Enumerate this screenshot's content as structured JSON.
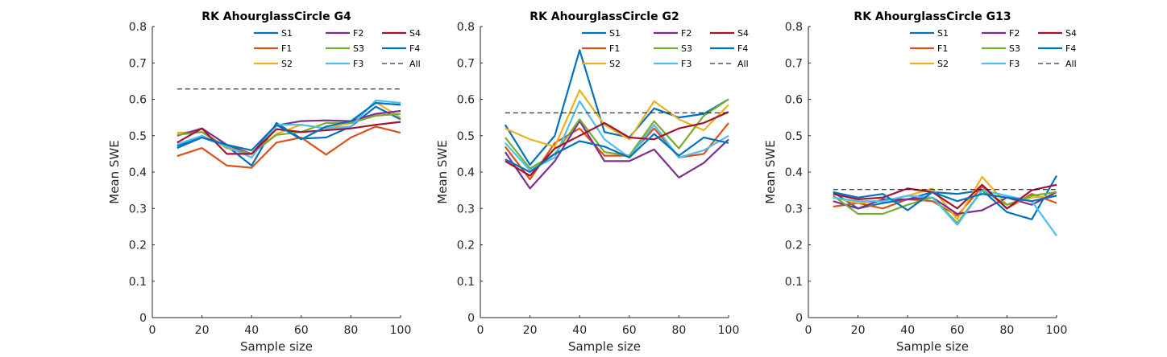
{
  "chart_data": [
    {
      "type": "line",
      "title": "RK AhourglassCircle G4",
      "xlabel": "Sample size",
      "ylabel": "Mean SWE",
      "xlim": [
        0,
        100
      ],
      "ylim": [
        0,
        0.8
      ],
      "xticks": [
        "0",
        "20",
        "40",
        "60",
        "80",
        "100"
      ],
      "yticks": [
        "0",
        "0.1",
        "0.2",
        "0.3",
        "0.4",
        "0.5",
        "0.6",
        "0.7",
        "0.8"
      ],
      "legend_position": "top-right",
      "grid": false,
      "x": [
        10,
        20,
        30,
        40,
        50,
        60,
        70,
        80,
        90,
        100
      ],
      "series": [
        {
          "name": "S1",
          "color": "#0072BD",
          "values": [
            0.472,
            0.495,
            0.472,
            0.418,
            0.535,
            0.492,
            0.495,
            0.525,
            0.58,
            0.545
          ]
        },
        {
          "name": "F1",
          "color": "#D95319",
          "values": [
            0.444,
            0.466,
            0.418,
            0.412,
            0.481,
            0.495,
            0.448,
            0.495,
            0.525,
            0.508
          ]
        },
        {
          "name": "S2",
          "color": "#EDB120",
          "values": [
            0.508,
            0.51,
            0.465,
            0.45,
            0.505,
            0.53,
            0.52,
            0.535,
            0.592,
            0.55
          ]
        },
        {
          "name": "F2",
          "color": "#7E2F8E",
          "values": [
            0.5,
            0.52,
            0.475,
            0.45,
            0.528,
            0.54,
            0.542,
            0.54,
            0.56,
            0.568
          ]
        },
        {
          "name": "S3",
          "color": "#77AC30",
          "values": [
            0.502,
            0.51,
            0.468,
            0.45,
            0.502,
            0.51,
            0.535,
            0.535,
            0.555,
            0.56
          ]
        },
        {
          "name": "F3",
          "color": "#4DBEEE",
          "values": [
            0.476,
            0.5,
            0.47,
            0.44,
            0.53,
            0.53,
            0.52,
            0.525,
            0.597,
            0.59
          ]
        },
        {
          "name": "S4",
          "color": "#A2142F",
          "values": [
            0.481,
            0.52,
            0.45,
            0.45,
            0.518,
            0.51,
            0.515,
            0.52,
            0.53,
            0.538
          ]
        },
        {
          "name": "F4",
          "color": "#0072BD",
          "values": [
            0.466,
            0.495,
            0.475,
            0.46,
            0.53,
            0.49,
            0.525,
            0.54,
            0.59,
            0.585
          ]
        },
        {
          "name": "All",
          "color": "#000000",
          "dashed": true,
          "values": [
            0.628,
            0.628,
            0.628,
            0.628,
            0.628,
            0.628,
            0.628,
            0.628,
            0.628,
            0.628
          ]
        }
      ]
    },
    {
      "type": "line",
      "title": "RK AhourglassCircle G2",
      "xlabel": "Sample size",
      "ylabel": "Mean SWE",
      "xlim": [
        0,
        100
      ],
      "ylim": [
        0,
        0.8
      ],
      "xticks": [
        "0",
        "20",
        "40",
        "60",
        "80",
        "100"
      ],
      "yticks": [
        "0",
        "0.1",
        "0.2",
        "0.3",
        "0.4",
        "0.5",
        "0.6",
        "0.7",
        "0.8"
      ],
      "legend_position": "top-right",
      "grid": false,
      "x": [
        10,
        20,
        30,
        40,
        50,
        60,
        70,
        80,
        90,
        100
      ],
      "series": [
        {
          "name": "S1",
          "color": "#0072BD",
          "values": [
            0.53,
            0.42,
            0.5,
            0.735,
            0.51,
            0.495,
            0.575,
            0.55,
            0.56,
            0.6
          ]
        },
        {
          "name": "F1",
          "color": "#D95319",
          "values": [
            0.47,
            0.38,
            0.48,
            0.52,
            0.445,
            0.445,
            0.52,
            0.44,
            0.45,
            0.535
          ]
        },
        {
          "name": "S2",
          "color": "#EDB120",
          "values": [
            0.52,
            0.49,
            0.47,
            0.625,
            0.53,
            0.49,
            0.595,
            0.545,
            0.515,
            0.585
          ]
        },
        {
          "name": "F2",
          "color": "#7E2F8E",
          "values": [
            0.455,
            0.355,
            0.43,
            0.54,
            0.43,
            0.43,
            0.462,
            0.385,
            0.425,
            0.49
          ]
        },
        {
          "name": "S3",
          "color": "#77AC30",
          "values": [
            0.495,
            0.41,
            0.45,
            0.545,
            0.455,
            0.445,
            0.54,
            0.465,
            0.555,
            0.6
          ]
        },
        {
          "name": "F3",
          "color": "#4DBEEE",
          "values": [
            0.48,
            0.405,
            0.44,
            0.595,
            0.49,
            0.44,
            0.53,
            0.44,
            0.46,
            0.5
          ]
        },
        {
          "name": "S4",
          "color": "#A2142F",
          "values": [
            0.43,
            0.39,
            0.465,
            0.5,
            0.535,
            0.495,
            0.49,
            0.52,
            0.535,
            0.565
          ]
        },
        {
          "name": "F4",
          "color": "#0072BD",
          "values": [
            0.435,
            0.4,
            0.45,
            0.485,
            0.47,
            0.44,
            0.505,
            0.445,
            0.495,
            0.48
          ]
        },
        {
          "name": "All",
          "color": "#000000",
          "dashed": true,
          "values": [
            0.563,
            0.563,
            0.563,
            0.563,
            0.563,
            0.563,
            0.563,
            0.563,
            0.563,
            0.563
          ]
        }
      ]
    },
    {
      "type": "line",
      "title": "RK AhourglassCircle G13",
      "xlabel": "Sample size",
      "ylabel": "Mean SWE",
      "xlim": [
        0,
        100
      ],
      "ylim": [
        0,
        0.8
      ],
      "xticks": [
        "0",
        "20",
        "40",
        "60",
        "80",
        "100"
      ],
      "yticks": [
        "0",
        "0.1",
        "0.2",
        "0.3",
        "0.4",
        "0.5",
        "0.6",
        "0.7",
        "0.8"
      ],
      "legend_position": "top-right",
      "grid": false,
      "x": [
        10,
        20,
        30,
        40,
        50,
        60,
        70,
        80,
        90,
        100
      ],
      "series": [
        {
          "name": "S1",
          "color": "#0072BD",
          "values": [
            0.345,
            0.3,
            0.315,
            0.325,
            0.345,
            0.34,
            0.35,
            0.29,
            0.27,
            0.39
          ]
        },
        {
          "name": "F1",
          "color": "#D95319",
          "values": [
            0.305,
            0.315,
            0.3,
            0.325,
            0.32,
            0.28,
            0.36,
            0.3,
            0.34,
            0.315
          ]
        },
        {
          "name": "S2",
          "color": "#EDB120",
          "values": [
            0.33,
            0.315,
            0.32,
            0.335,
            0.355,
            0.27,
            0.387,
            0.31,
            0.33,
            0.335
          ]
        },
        {
          "name": "F2",
          "color": "#7E2F8E",
          "values": [
            0.32,
            0.3,
            0.325,
            0.325,
            0.33,
            0.285,
            0.295,
            0.33,
            0.31,
            0.345
          ]
        },
        {
          "name": "S3",
          "color": "#77AC30",
          "values": [
            0.335,
            0.285,
            0.285,
            0.31,
            0.33,
            0.26,
            0.35,
            0.31,
            0.335,
            0.345
          ]
        },
        {
          "name": "F3",
          "color": "#4DBEEE",
          "values": [
            0.33,
            0.32,
            0.32,
            0.335,
            0.33,
            0.255,
            0.35,
            0.335,
            0.32,
            0.225
          ]
        },
        {
          "name": "S4",
          "color": "#A2142F",
          "values": [
            0.34,
            0.325,
            0.33,
            0.355,
            0.345,
            0.3,
            0.365,
            0.3,
            0.35,
            0.365
          ]
        },
        {
          "name": "F4",
          "color": "#0072BD",
          "values": [
            0.345,
            0.33,
            0.34,
            0.295,
            0.345,
            0.32,
            0.34,
            0.33,
            0.32,
            0.335
          ]
        },
        {
          "name": "All",
          "color": "#000000",
          "dashed": true,
          "values": [
            0.352,
            0.352,
            0.352,
            0.352,
            0.352,
            0.352,
            0.352,
            0.352,
            0.352,
            0.352
          ]
        }
      ]
    }
  ]
}
